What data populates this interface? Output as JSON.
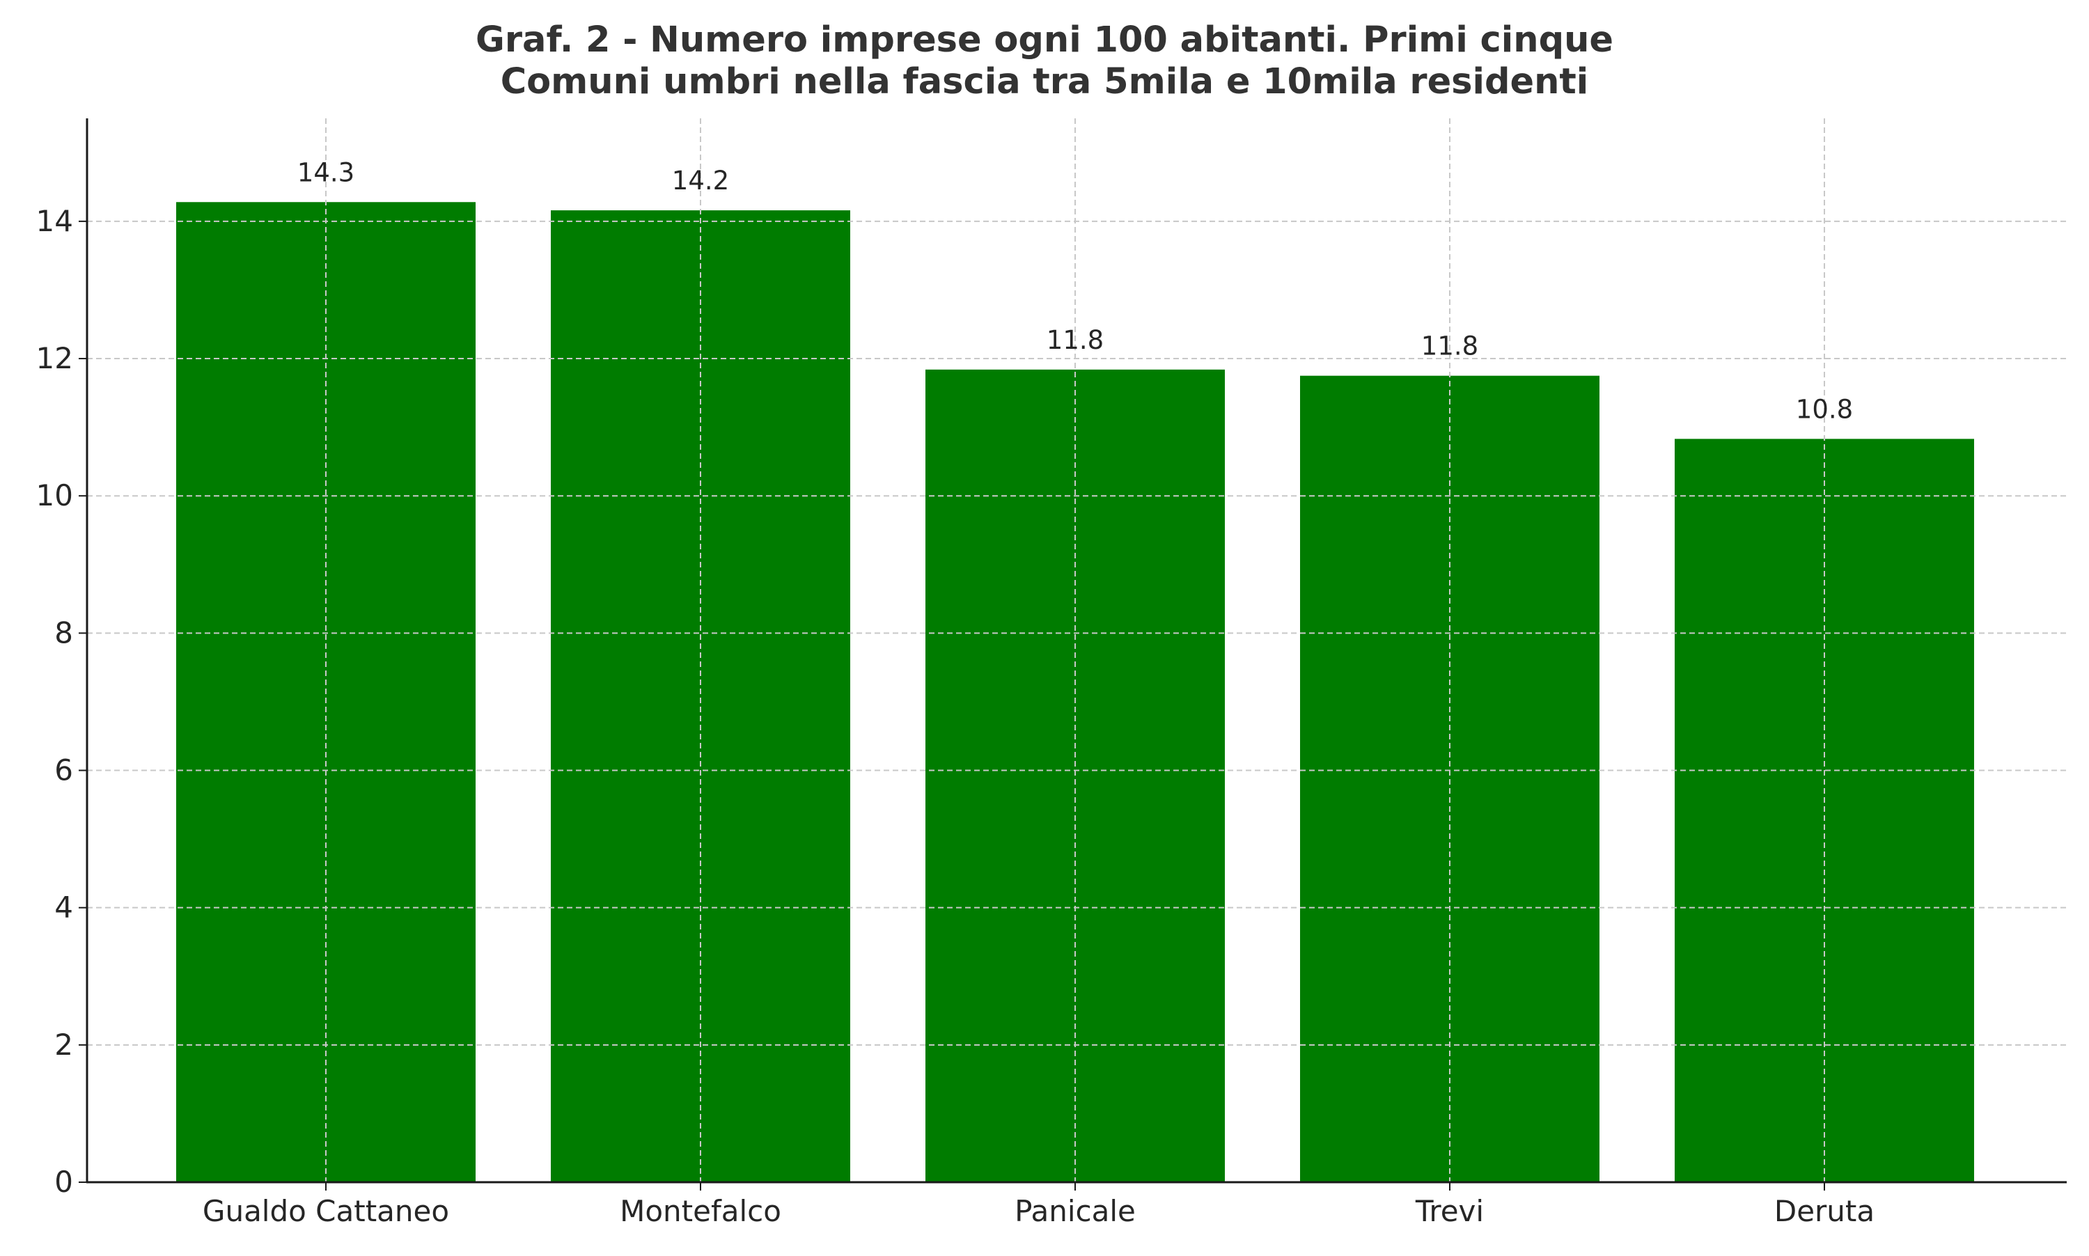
{
  "chart_data": {
    "type": "bar",
    "title_lines": [
      "Graf. 2 - Numero imprese ogni 100 abitanti. Primi cinque",
      "Comuni umbri nella fascia tra 5mila e 10mila residenti"
    ],
    "title": "Graf. 2 - Numero imprese ogni 100 abitanti. Primi cinque Comuni umbri nella fascia tra 5mila e 10mila residenti",
    "categories": [
      "Gualdo Cattaneo",
      "Montefalco",
      "Panicale",
      "Trevi",
      "Deruta"
    ],
    "values": [
      14.3,
      14.2,
      11.8,
      11.8,
      10.8
    ],
    "plotted_values": [
      14.28,
      14.16,
      11.84,
      11.75,
      10.83
    ],
    "data_labels": [
      "14.3",
      "14.2",
      "11.8",
      "11.8",
      "10.8"
    ],
    "xlabel": "",
    "ylabel": "",
    "ylim": [
      0,
      15.5
    ],
    "yticks": [
      0,
      2,
      4,
      6,
      8,
      10,
      12,
      14
    ],
    "grid": true,
    "legend": "none",
    "colors": {
      "bar": "#007c00",
      "grid": "#c8c8c8",
      "axis": "#1a1a1a",
      "text": "#262626",
      "title": "#333333"
    }
  }
}
